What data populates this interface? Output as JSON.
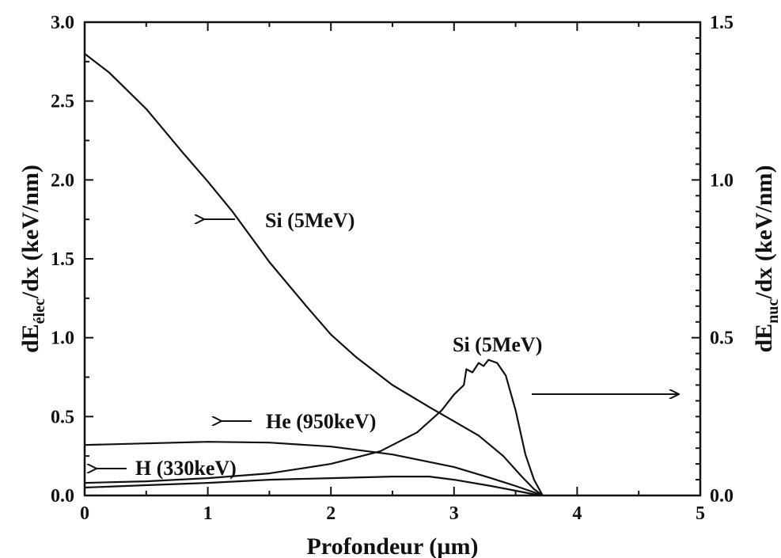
{
  "chart_data": {
    "type": "line",
    "xlabel": "Profondeur (µm)",
    "ylabel_left": "dE_élec/dx (keV/nm)",
    "ylabel_right": "dE_nuc/dx (keV/nm)",
    "xlim": [
      0,
      5
    ],
    "ylim_left": [
      0,
      3.0
    ],
    "ylim_right": [
      0,
      1.5
    ],
    "x_ticks": [
      "0",
      "1",
      "2",
      "3",
      "4",
      "5"
    ],
    "y_left_ticks": [
      "0.0",
      "0.5",
      "1.0",
      "1.5",
      "2.0",
      "2.5",
      "3.0"
    ],
    "y_right_ticks": [
      "0.0",
      "0.5",
      "1.0",
      "1.5"
    ],
    "series": [
      {
        "name": "Si (5MeV)",
        "axis": "left",
        "points": [
          [
            0,
            2.8
          ],
          [
            0.2,
            2.68
          ],
          [
            0.5,
            2.45
          ],
          [
            0.8,
            2.17
          ],
          [
            1.0,
            1.99
          ],
          [
            1.2,
            1.8
          ],
          [
            1.5,
            1.48
          ],
          [
            1.8,
            1.2
          ],
          [
            2.0,
            1.02
          ],
          [
            2.2,
            0.88
          ],
          [
            2.5,
            0.7
          ],
          [
            2.8,
            0.56
          ],
          [
            3.0,
            0.47
          ],
          [
            3.2,
            0.38
          ],
          [
            3.4,
            0.25
          ],
          [
            3.55,
            0.12
          ],
          [
            3.65,
            0.04
          ],
          [
            3.72,
            0.0
          ]
        ]
      },
      {
        "name": "He (950keV)",
        "axis": "left",
        "points": [
          [
            0,
            0.32
          ],
          [
            0.5,
            0.33
          ],
          [
            1.0,
            0.34
          ],
          [
            1.5,
            0.335
          ],
          [
            2.0,
            0.31
          ],
          [
            2.5,
            0.26
          ],
          [
            3.0,
            0.18
          ],
          [
            3.3,
            0.11
          ],
          [
            3.5,
            0.06
          ],
          [
            3.65,
            0.02
          ],
          [
            3.72,
            0.0
          ]
        ]
      },
      {
        "name": "H (330keV)",
        "axis": "left",
        "points": [
          [
            0,
            0.05
          ],
          [
            0.5,
            0.065
          ],
          [
            1.0,
            0.08
          ],
          [
            1.5,
            0.1
          ],
          [
            2.0,
            0.11
          ],
          [
            2.5,
            0.12
          ],
          [
            2.8,
            0.12
          ],
          [
            3.0,
            0.1
          ],
          [
            3.3,
            0.06
          ],
          [
            3.5,
            0.03
          ],
          [
            3.7,
            0.0
          ]
        ]
      },
      {
        "name": "Si (5MeV)",
        "axis": "right",
        "points": [
          [
            0,
            0.04
          ],
          [
            0.5,
            0.045
          ],
          [
            1.0,
            0.055
          ],
          [
            1.5,
            0.07
          ],
          [
            2.0,
            0.1
          ],
          [
            2.4,
            0.14
          ],
          [
            2.7,
            0.2
          ],
          [
            2.9,
            0.27
          ],
          [
            3.0,
            0.32
          ],
          [
            3.08,
            0.35
          ],
          [
            3.1,
            0.4
          ],
          [
            3.15,
            0.39
          ],
          [
            3.2,
            0.42
          ],
          [
            3.24,
            0.41
          ],
          [
            3.28,
            0.43
          ],
          [
            3.35,
            0.42
          ],
          [
            3.42,
            0.38
          ],
          [
            3.5,
            0.27
          ],
          [
            3.58,
            0.13
          ],
          [
            3.65,
            0.05
          ],
          [
            3.72,
            0.0
          ]
        ]
      }
    ],
    "annotations": {
      "si_elec": "Si (5MeV)",
      "si_nuc": "Si (5MeV)",
      "he": "He (950keV)",
      "h": "H (330keV)"
    },
    "grid": false,
    "legend": "none"
  }
}
